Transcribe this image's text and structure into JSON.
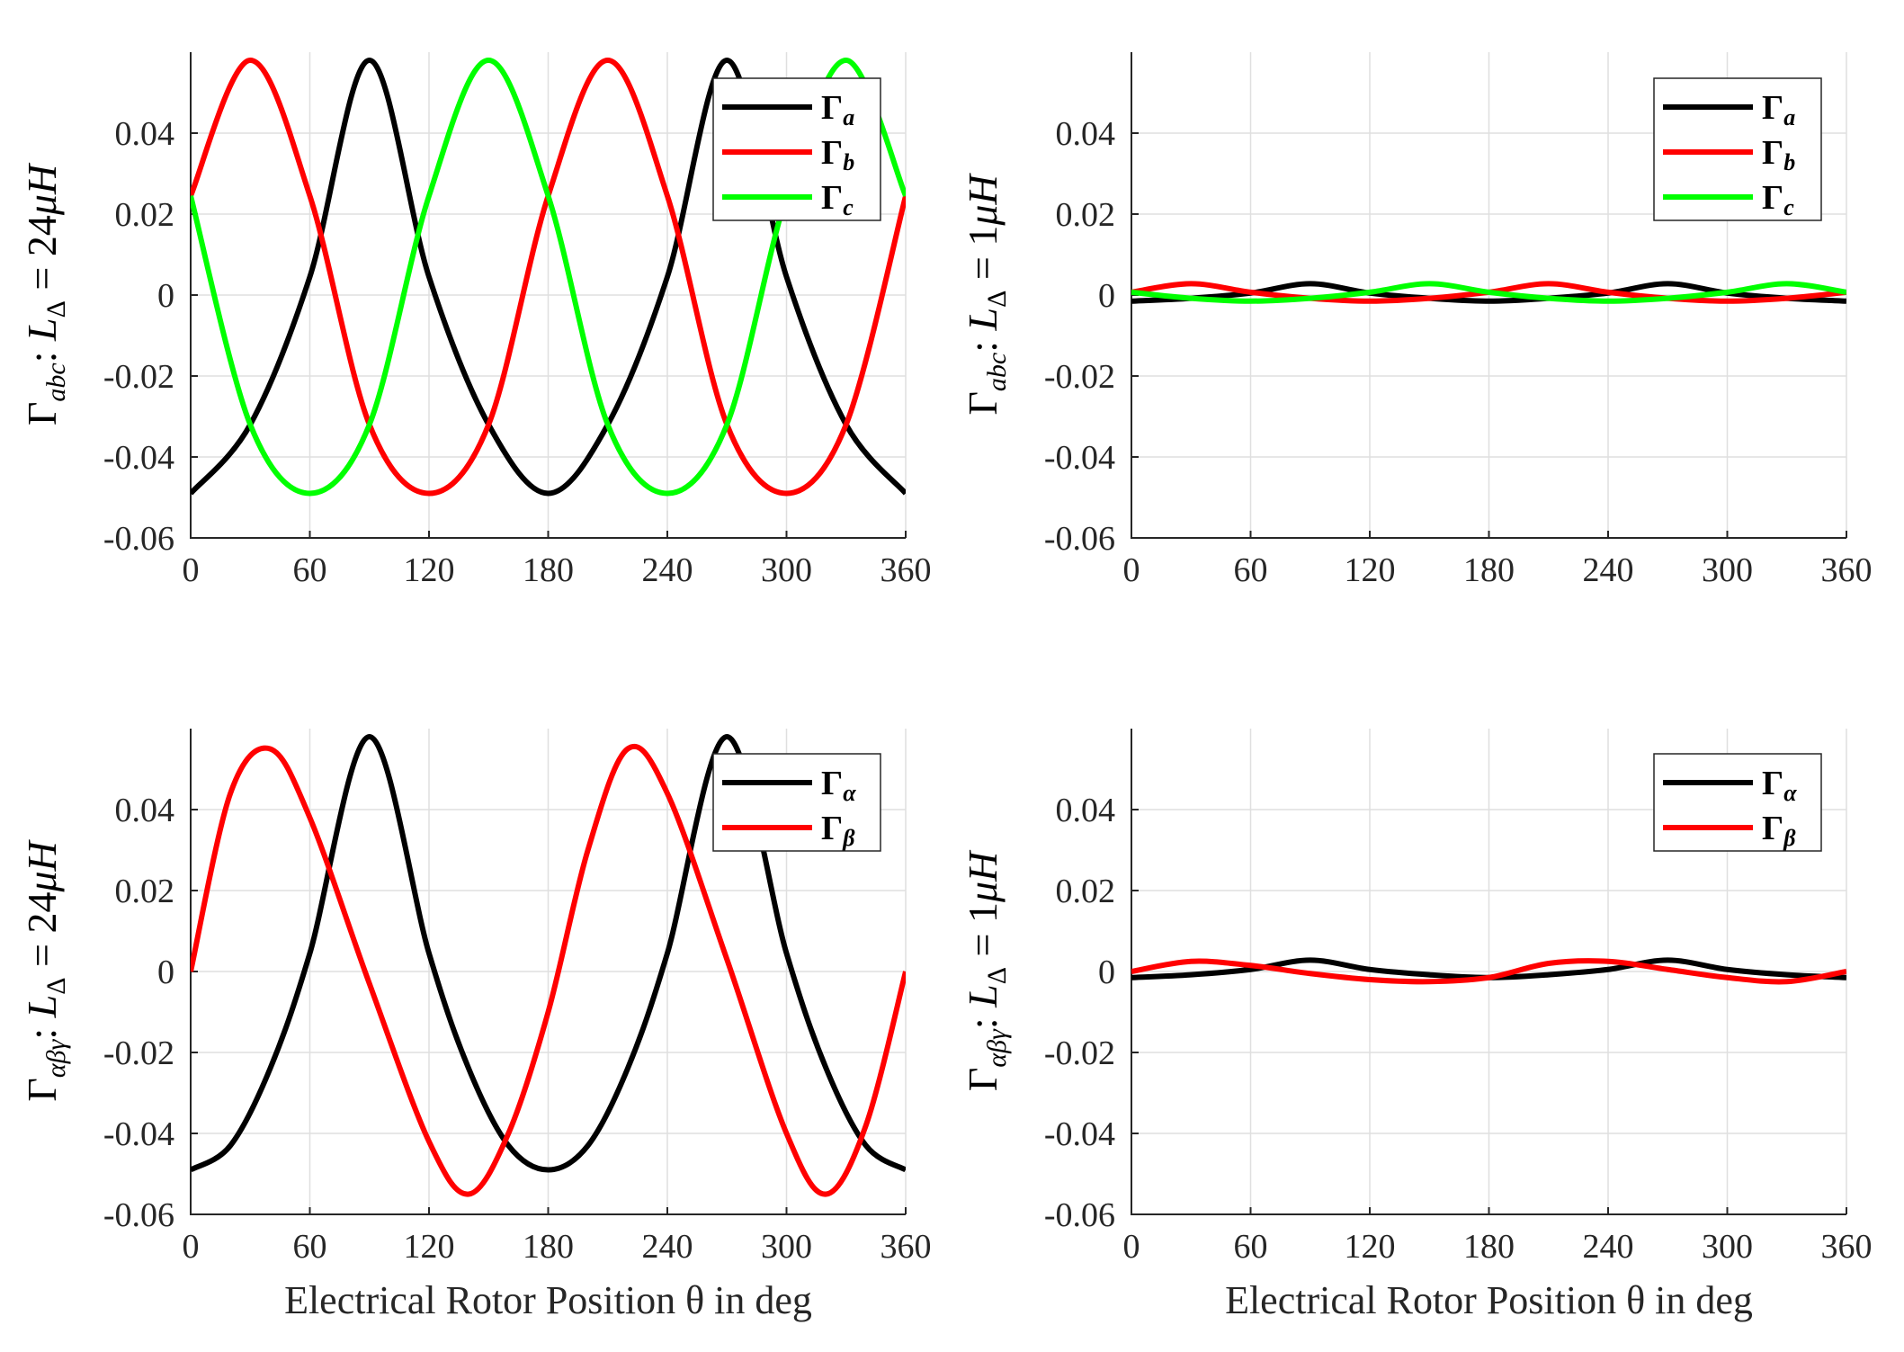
{
  "figure": {
    "xlabel": "Electrical Rotor Position θ in deg"
  },
  "chart_data": [
    {
      "id": "p1",
      "type": "line",
      "ylabel": {
        "gamma": "Γ",
        "sub": "abc",
        "colon": ": ",
        "L": "L",
        "delta": "Δ",
        "eq": " = 24",
        "unit": "μH"
      },
      "xlim": [
        0,
        360
      ],
      "ylim": [
        -0.06,
        0.06
      ],
      "xticks": [
        0,
        60,
        120,
        180,
        240,
        300,
        360
      ],
      "xtick_labels": [
        "0",
        "60",
        "120",
        "180",
        "240",
        "300",
        "360"
      ],
      "yticks": [
        -0.06,
        -0.04,
        -0.02,
        0,
        0.02,
        0.04
      ],
      "ytick_labels": [
        "-0.06",
        "-0.04",
        "-0.02",
        "0",
        "0.02",
        "0.04"
      ],
      "grid": true,
      "x": [
        0,
        30,
        60,
        90,
        120,
        150,
        180,
        210,
        240,
        270,
        300,
        330,
        360
      ],
      "series": [
        {
          "name": "Γ",
          "sub": "a",
          "color": "#000000",
          "values": [
            -0.049,
            -0.032,
            0.0045,
            0.058,
            0.0045,
            -0.032,
            -0.049,
            -0.032,
            0.0045,
            0.058,
            0.0045,
            -0.032,
            -0.049
          ]
        },
        {
          "name": "Γ",
          "sub": "b",
          "color": "#ff0000",
          "values": [
            0.0245,
            0.058,
            0.0245,
            -0.032,
            -0.049,
            -0.032,
            0.0245,
            0.058,
            0.0245,
            -0.032,
            -0.049,
            -0.032,
            0.0245
          ]
        },
        {
          "name": "Γ",
          "sub": "c",
          "color": "#00ff00",
          "values": [
            0.0245,
            -0.032,
            -0.049,
            -0.032,
            0.0245,
            0.058,
            0.0245,
            -0.032,
            -0.049,
            -0.032,
            0.0245,
            0.058,
            0.0245
          ]
        }
      ],
      "legend": "top-right"
    },
    {
      "id": "p2",
      "type": "line",
      "ylabel": {
        "gamma": "Γ",
        "sub": "abc",
        "colon": ": ",
        "L": "L",
        "delta": "Δ",
        "eq": " = 1",
        "unit": "μH"
      },
      "xlim": [
        0,
        360
      ],
      "ylim": [
        -0.06,
        0.06
      ],
      "xticks": [
        0,
        60,
        120,
        180,
        240,
        300,
        360
      ],
      "xtick_labels": [
        "0",
        "60",
        "120",
        "180",
        "240",
        "300",
        "360"
      ],
      "yticks": [
        -0.06,
        -0.04,
        -0.02,
        0,
        0.02,
        0.04
      ],
      "ytick_labels": [
        "-0.06",
        "-0.04",
        "-0.02",
        "0",
        "0.02",
        "0.04"
      ],
      "grid": true,
      "x": [
        0,
        30,
        60,
        90,
        120,
        150,
        180,
        210,
        240,
        270,
        300,
        330,
        360
      ],
      "series": [
        {
          "name": "Γ",
          "sub": "a",
          "color": "#000000",
          "values": [
            -0.0015,
            -0.0008,
            0.0005,
            0.0028,
            0.0005,
            -0.0008,
            -0.0015,
            -0.0008,
            0.0005,
            0.0028,
            0.0005,
            -0.0008,
            -0.0015
          ]
        },
        {
          "name": "Γ",
          "sub": "b",
          "color": "#ff0000",
          "values": [
            0.0007,
            0.0028,
            0.0007,
            -0.0008,
            -0.0015,
            -0.0008,
            0.0007,
            0.0028,
            0.0007,
            -0.0008,
            -0.0015,
            -0.0008,
            0.0007
          ]
        },
        {
          "name": "Γ",
          "sub": "c",
          "color": "#00ff00",
          "values": [
            0.0007,
            -0.0008,
            -0.0015,
            -0.0008,
            0.0007,
            0.0028,
            0.0007,
            -0.0008,
            -0.0015,
            -0.0008,
            0.0007,
            0.0028,
            0.0007
          ]
        }
      ],
      "legend": "top-right"
    },
    {
      "id": "p3",
      "type": "line",
      "ylabel": {
        "gamma": "Γ",
        "sub": "αβγ",
        "colon": ": ",
        "L": "L",
        "delta": "Δ",
        "eq": " = 24",
        "unit": "μH"
      },
      "xlim": [
        0,
        360
      ],
      "ylim": [
        -0.06,
        0.06
      ],
      "xticks": [
        0,
        60,
        120,
        180,
        240,
        300,
        360
      ],
      "xtick_labels": [
        "0",
        "60",
        "120",
        "180",
        "240",
        "300",
        "360"
      ],
      "yticks": [
        -0.06,
        -0.04,
        -0.02,
        0,
        0.02,
        0.04
      ],
      "ytick_labels": [
        "-0.06",
        "-0.04",
        "-0.02",
        "0",
        "0.02",
        "0.04"
      ],
      "grid": true,
      "x": [
        0,
        20,
        40,
        60,
        90,
        120,
        140,
        160,
        180,
        200,
        220,
        240,
        270,
        300,
        320,
        340,
        360
      ],
      "series": [
        {
          "name": "Γ",
          "sub": "α",
          "color": "#000000",
          "values": [
            -0.049,
            -0.043,
            -0.024,
            0.0045,
            0.058,
            0.0045,
            -0.024,
            -0.043,
            -0.049,
            -0.043,
            -0.024,
            0.0045,
            0.058,
            0.0045,
            -0.024,
            -0.043,
            -0.049
          ]
        },
        {
          "name": "Γ",
          "sub": "β",
          "color": "#ff0000",
          "values": [
            0.0,
            0.044,
            0.055,
            0.038,
            -0.003,
            -0.042,
            -0.055,
            -0.04,
            -0.01,
            0.03,
            0.055,
            0.044,
            0.003,
            -0.04,
            -0.055,
            -0.038,
            0.0
          ]
        }
      ],
      "legend": "top-right"
    },
    {
      "id": "p4",
      "type": "line",
      "ylabel": {
        "gamma": "Γ",
        "sub": "αβγ",
        "colon": ": ",
        "L": "L",
        "delta": "Δ",
        "eq": " = 1",
        "unit": "μH"
      },
      "xlim": [
        0,
        360
      ],
      "ylim": [
        -0.06,
        0.06
      ],
      "xticks": [
        0,
        60,
        120,
        180,
        240,
        300,
        360
      ],
      "xtick_labels": [
        "0",
        "60",
        "120",
        "180",
        "240",
        "300",
        "360"
      ],
      "yticks": [
        -0.06,
        -0.04,
        -0.02,
        0,
        0.02,
        0.04
      ],
      "ytick_labels": [
        "-0.06",
        "-0.04",
        "-0.02",
        "0",
        "0.02",
        "0.04"
      ],
      "grid": true,
      "x": [
        0,
        30,
        60,
        90,
        120,
        150,
        180,
        210,
        240,
        270,
        300,
        330,
        360
      ],
      "series": [
        {
          "name": "Γ",
          "sub": "α",
          "color": "#000000",
          "values": [
            -0.0015,
            -0.0008,
            0.0005,
            0.0028,
            0.0005,
            -0.0008,
            -0.0015,
            -0.0008,
            0.0005,
            0.0028,
            0.0005,
            -0.0008,
            -0.0015
          ]
        },
        {
          "name": "Γ",
          "sub": "β",
          "color": "#ff0000",
          "values": [
            0.0,
            0.0025,
            0.0015,
            -0.0005,
            -0.002,
            -0.0025,
            -0.0015,
            0.002,
            0.0025,
            0.0005,
            -0.0015,
            -0.0025,
            0.0
          ]
        }
      ],
      "legend": "top-right"
    }
  ]
}
